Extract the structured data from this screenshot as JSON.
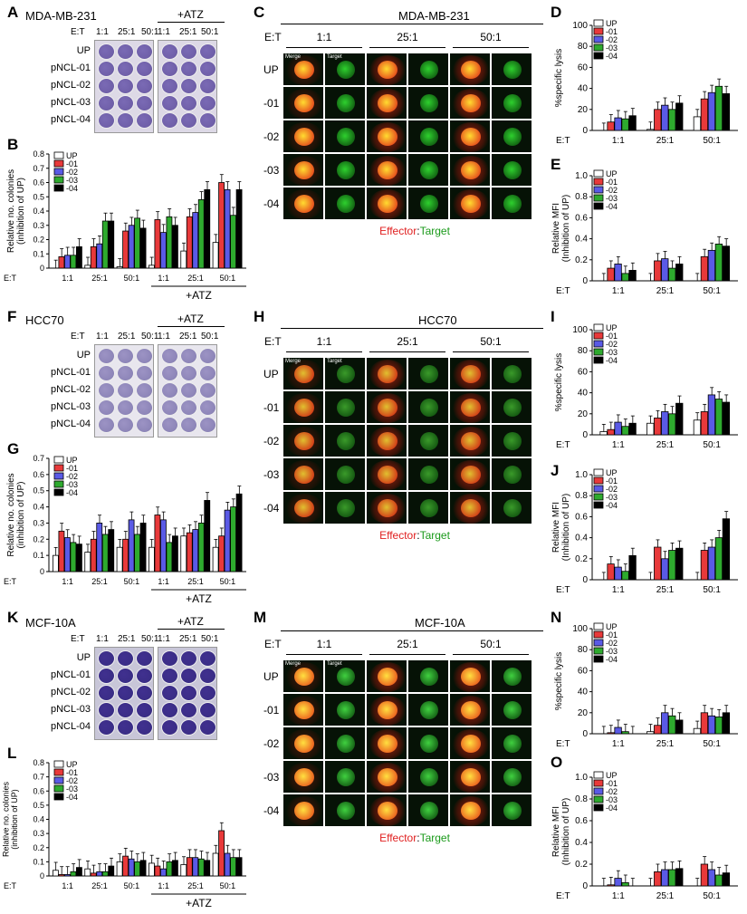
{
  "panel_letters": {
    "A": "A",
    "B": "B",
    "C": "C",
    "D": "D",
    "E": "E",
    "F": "F",
    "G": "G",
    "H": "H",
    "I": "I",
    "J": "J",
    "K": "K",
    "L": "L",
    "M": "M",
    "N": "N",
    "O": "O"
  },
  "et_label": "E:T",
  "ratios": [
    "1:1",
    "25:1",
    "50:1"
  ],
  "atz_label": "+ATZ",
  "row_labels": [
    "UP",
    "pNCL-01",
    "pNCL-02",
    "pNCL-03",
    "pNCL-04"
  ],
  "micro_row_labels": [
    "UP",
    "-01",
    "-02",
    "-03",
    "-04"
  ],
  "micro_tile_labels": {
    "merge": "Merge",
    "target": "Target"
  },
  "effector_word": "Effector",
  "colon": ":",
  "target_word": "Target",
  "cell_lines": [
    "MDA-MB-231",
    "HCC70",
    "MCF-10A"
  ],
  "legend": [
    "UP",
    "-01",
    "-02",
    "-03",
    "-04"
  ],
  "colors": {
    "UP": "#ffffff",
    "01": "#e8393a",
    "02": "#5a5ae6",
    "03": "#2eaa2e",
    "04": "#000000",
    "hash_red": "#e8393a",
    "hash_blue": "#3a3adc",
    "hash_green": "#2eaa2e",
    "effector_red": "#e02020",
    "target_green": "#1a9a1a"
  },
  "chart_data": [
    {
      "id": "B",
      "type": "bar",
      "ylabel": "Relative no. colonies (inhibition of UP)",
      "ylim": [
        0,
        0.8
      ],
      "yticks": [
        0,
        0.1,
        0.2,
        0.3,
        0.4,
        0.5,
        0.6,
        0.7,
        0.8
      ],
      "groups": [
        "1:1",
        "25:1",
        "50:1",
        "1:1",
        "25:1",
        "50:1"
      ],
      "series": [
        {
          "name": "UP",
          "values": [
            0.0,
            0.02,
            0.01,
            0.02,
            0.12,
            0.18
          ]
        },
        {
          "name": "-01",
          "values": [
            0.08,
            0.15,
            0.26,
            0.34,
            0.36,
            0.6
          ]
        },
        {
          "name": "-02",
          "values": [
            0.09,
            0.17,
            0.3,
            0.25,
            0.39,
            0.55
          ]
        },
        {
          "name": "-03",
          "values": [
            0.09,
            0.33,
            0.35,
            0.36,
            0.48,
            0.37
          ]
        },
        {
          "name": "-04",
          "values": [
            0.15,
            0.33,
            0.28,
            0.3,
            0.55,
            0.55
          ]
        }
      ]
    },
    {
      "id": "D",
      "type": "bar",
      "ylabel": "%specific lysis",
      "ylim": [
        0,
        100
      ],
      "yticks": [
        0,
        20,
        40,
        60,
        80,
        100
      ],
      "groups": [
        "1:1",
        "25:1",
        "50:1"
      ],
      "series": [
        {
          "name": "UP",
          "values": [
            0,
            1,
            13
          ]
        },
        {
          "name": "-01",
          "values": [
            8,
            20,
            30
          ]
        },
        {
          "name": "-02",
          "values": [
            12,
            24,
            36
          ]
        },
        {
          "name": "-03",
          "values": [
            11,
            20,
            42
          ]
        },
        {
          "name": "-04",
          "values": [
            14,
            26,
            35
          ]
        }
      ]
    },
    {
      "id": "E",
      "type": "bar",
      "ylabel": "Relative MFI (Inhibition of UP)",
      "ylim": [
        0,
        1.0
      ],
      "yticks": [
        0,
        0.2,
        0.4,
        0.6,
        0.8,
        1.0
      ],
      "groups": [
        "1:1",
        "25:1",
        "50:1"
      ],
      "series": [
        {
          "name": "UP",
          "values": [
            0,
            0,
            0
          ]
        },
        {
          "name": "-01",
          "values": [
            0.12,
            0.19,
            0.23
          ]
        },
        {
          "name": "-02",
          "values": [
            0.16,
            0.21,
            0.29
          ]
        },
        {
          "name": "-03",
          "values": [
            0.07,
            0.12,
            0.35
          ]
        },
        {
          "name": "-04",
          "values": [
            0.1,
            0.16,
            0.33
          ]
        }
      ]
    },
    {
      "id": "G",
      "type": "bar",
      "ylabel": "Relative no. colonies (inhibition of UP)",
      "ylim": [
        0,
        0.7
      ],
      "yticks": [
        0,
        0.1,
        0.2,
        0.3,
        0.4,
        0.5,
        0.6,
        0.7
      ],
      "groups": [
        "1:1",
        "25:1",
        "50:1",
        "1:1",
        "25:1",
        "50:1"
      ],
      "series": [
        {
          "name": "UP",
          "values": [
            0.1,
            0.12,
            0.15,
            0.15,
            0.22,
            0.15
          ]
        },
        {
          "name": "-01",
          "values": [
            0.25,
            0.2,
            0.2,
            0.35,
            0.24,
            0.22
          ]
        },
        {
          "name": "-02",
          "values": [
            0.21,
            0.3,
            0.32,
            0.32,
            0.26,
            0.38
          ]
        },
        {
          "name": "-03",
          "values": [
            0.18,
            0.23,
            0.23,
            0.18,
            0.3,
            0.4
          ]
        },
        {
          "name": "-04",
          "values": [
            0.17,
            0.26,
            0.3,
            0.22,
            0.44,
            0.48
          ]
        }
      ]
    },
    {
      "id": "I",
      "type": "bar",
      "ylabel": "%specific lysis",
      "ylim": [
        0,
        100
      ],
      "yticks": [
        0,
        20,
        40,
        60,
        80,
        100
      ],
      "groups": [
        "1:1",
        "25:1",
        "50:1"
      ],
      "series": [
        {
          "name": "UP",
          "values": [
            3,
            11,
            14
          ]
        },
        {
          "name": "-01",
          "values": [
            5,
            16,
            22
          ]
        },
        {
          "name": "-02",
          "values": [
            12,
            22,
            38
          ]
        },
        {
          "name": "-03",
          "values": [
            8,
            20,
            34
          ]
        },
        {
          "name": "-04",
          "values": [
            11,
            30,
            31
          ]
        }
      ]
    },
    {
      "id": "J",
      "type": "bar",
      "ylabel": "Relative MFI (Inhibition of UP)",
      "ylim": [
        0,
        1.0
      ],
      "yticks": [
        0,
        0.2,
        0.4,
        0.6,
        0.8,
        1.0
      ],
      "groups": [
        "1:1",
        "25:1",
        "50:1"
      ],
      "series": [
        {
          "name": "UP",
          "values": [
            0,
            0,
            0
          ]
        },
        {
          "name": "-01",
          "values": [
            0.15,
            0.31,
            0.28
          ]
        },
        {
          "name": "-02",
          "values": [
            0.12,
            0.2,
            0.31
          ]
        },
        {
          "name": "-03",
          "values": [
            0.08,
            0.28,
            0.4
          ]
        },
        {
          "name": "-04",
          "values": [
            0.23,
            0.3,
            0.58
          ]
        }
      ]
    },
    {
      "id": "L",
      "type": "bar",
      "ylabel": "Relative no. colonies (inhibition of UP)",
      "ylim": [
        0,
        0.8
      ],
      "yticks": [
        0,
        0.1,
        0.2,
        0.3,
        0.4,
        0.5,
        0.6,
        0.7,
        0.8
      ],
      "groups": [
        "1:1",
        "25:1",
        "50:1",
        "1:1",
        "25:1",
        "50:1"
      ],
      "series": [
        {
          "name": "UP",
          "values": [
            0.04,
            0.05,
            0.1,
            0.09,
            0.08,
            0.16
          ]
        },
        {
          "name": "-01",
          "values": [
            0.01,
            0.02,
            0.14,
            0.07,
            0.13,
            0.32
          ]
        },
        {
          "name": "-02",
          "values": [
            0.01,
            0.03,
            0.12,
            0.05,
            0.13,
            0.16
          ]
        },
        {
          "name": "-03",
          "values": [
            0.03,
            0.03,
            0.1,
            0.1,
            0.12,
            0.13
          ]
        },
        {
          "name": "-04",
          "values": [
            0.06,
            0.07,
            0.11,
            0.11,
            0.11,
            0.13
          ]
        }
      ]
    },
    {
      "id": "N",
      "type": "bar",
      "ylabel": "%specific lysis",
      "ylim": [
        0,
        100
      ],
      "yticks": [
        0,
        20,
        40,
        60,
        80,
        100
      ],
      "groups": [
        "1:1",
        "25:1",
        "50:1"
      ],
      "series": [
        {
          "name": "UP",
          "values": [
            0,
            2,
            5
          ]
        },
        {
          "name": "-01",
          "values": [
            1,
            8,
            20
          ]
        },
        {
          "name": "-02",
          "values": [
            6,
            20,
            17
          ]
        },
        {
          "name": "-03",
          "values": [
            2,
            17,
            16
          ]
        },
        {
          "name": "-04",
          "values": [
            0,
            13,
            20
          ]
        }
      ]
    },
    {
      "id": "O",
      "type": "bar",
      "ylabel": "Relative MFI (Inhibition of UP)",
      "ylim": [
        0,
        1.0
      ],
      "yticks": [
        0,
        0.2,
        0.4,
        0.6,
        0.8,
        1.0
      ],
      "groups": [
        "1:1",
        "25:1",
        "50:1"
      ],
      "series": [
        {
          "name": "UP",
          "values": [
            0,
            0,
            0
          ]
        },
        {
          "name": "-01",
          "values": [
            0.01,
            0.13,
            0.2
          ]
        },
        {
          "name": "-02",
          "values": [
            0.07,
            0.15,
            0.15
          ]
        },
        {
          "name": "-03",
          "values": [
            0.03,
            0.15,
            0.1
          ]
        },
        {
          "name": "-04",
          "values": [
            0,
            0.16,
            0.12
          ]
        }
      ]
    }
  ]
}
